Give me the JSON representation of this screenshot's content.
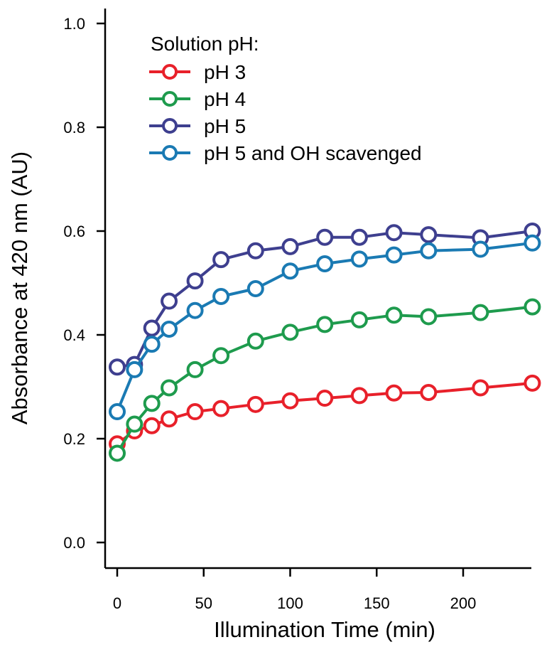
{
  "chart_data": {
    "type": "line",
    "xlabel": "Illumination Time (min)",
    "ylabel": "Absorbance at 420 nm (AU)",
    "xlim": [
      -2,
      240
    ],
    "ylim": [
      -0.05,
      1.03
    ],
    "xticks": [
      0,
      50,
      100,
      150,
      200
    ],
    "xtick_labels": [
      "0",
      "50",
      "100",
      "150",
      "200"
    ],
    "yticks": [
      0.0,
      0.2,
      0.4,
      0.6,
      0.8,
      1.0
    ],
    "ytick_labels": [
      "0.0",
      "0.2",
      "0.4",
      "0.6",
      "0.8",
      "1.0"
    ],
    "grid": false,
    "legend": {
      "title": "Solution pH:",
      "placement": "top-left"
    },
    "series": [
      {
        "name": "pH 3",
        "color": "#e8202a",
        "x": [
          0,
          10,
          20,
          30,
          45,
          60,
          80,
          100,
          120,
          140,
          160,
          180,
          210,
          240
        ],
        "y": [
          0.19,
          0.215,
          0.225,
          0.238,
          0.252,
          0.258,
          0.266,
          0.273,
          0.278,
          0.283,
          0.288,
          0.289,
          0.298,
          0.307
        ]
      },
      {
        "name": "pH 4",
        "color": "#1e9b4d",
        "x": [
          0,
          10,
          20,
          30,
          45,
          60,
          80,
          100,
          120,
          140,
          160,
          180,
          210,
          240
        ],
        "y": [
          0.172,
          0.228,
          0.268,
          0.298,
          0.333,
          0.36,
          0.388,
          0.405,
          0.42,
          0.429,
          0.438,
          0.435,
          0.443,
          0.454
        ]
      },
      {
        "name": "pH 5",
        "color": "#3e3f8f",
        "x": [
          0,
          10,
          20,
          30,
          45,
          60,
          80,
          100,
          120,
          140,
          160,
          180,
          210,
          240
        ],
        "y": [
          0.338,
          0.343,
          0.413,
          0.465,
          0.504,
          0.545,
          0.562,
          0.57,
          0.588,
          0.588,
          0.597,
          0.593,
          0.587,
          0.6
        ]
      },
      {
        "name": "pH 5 and OH scavenged",
        "color": "#1a7ab3",
        "x": [
          0,
          10,
          20,
          30,
          45,
          60,
          80,
          100,
          120,
          140,
          160,
          180,
          210,
          240
        ],
        "y": [
          0.252,
          0.333,
          0.382,
          0.411,
          0.447,
          0.474,
          0.489,
          0.523,
          0.537,
          0.546,
          0.554,
          0.562,
          0.565,
          0.577
        ]
      }
    ]
  }
}
